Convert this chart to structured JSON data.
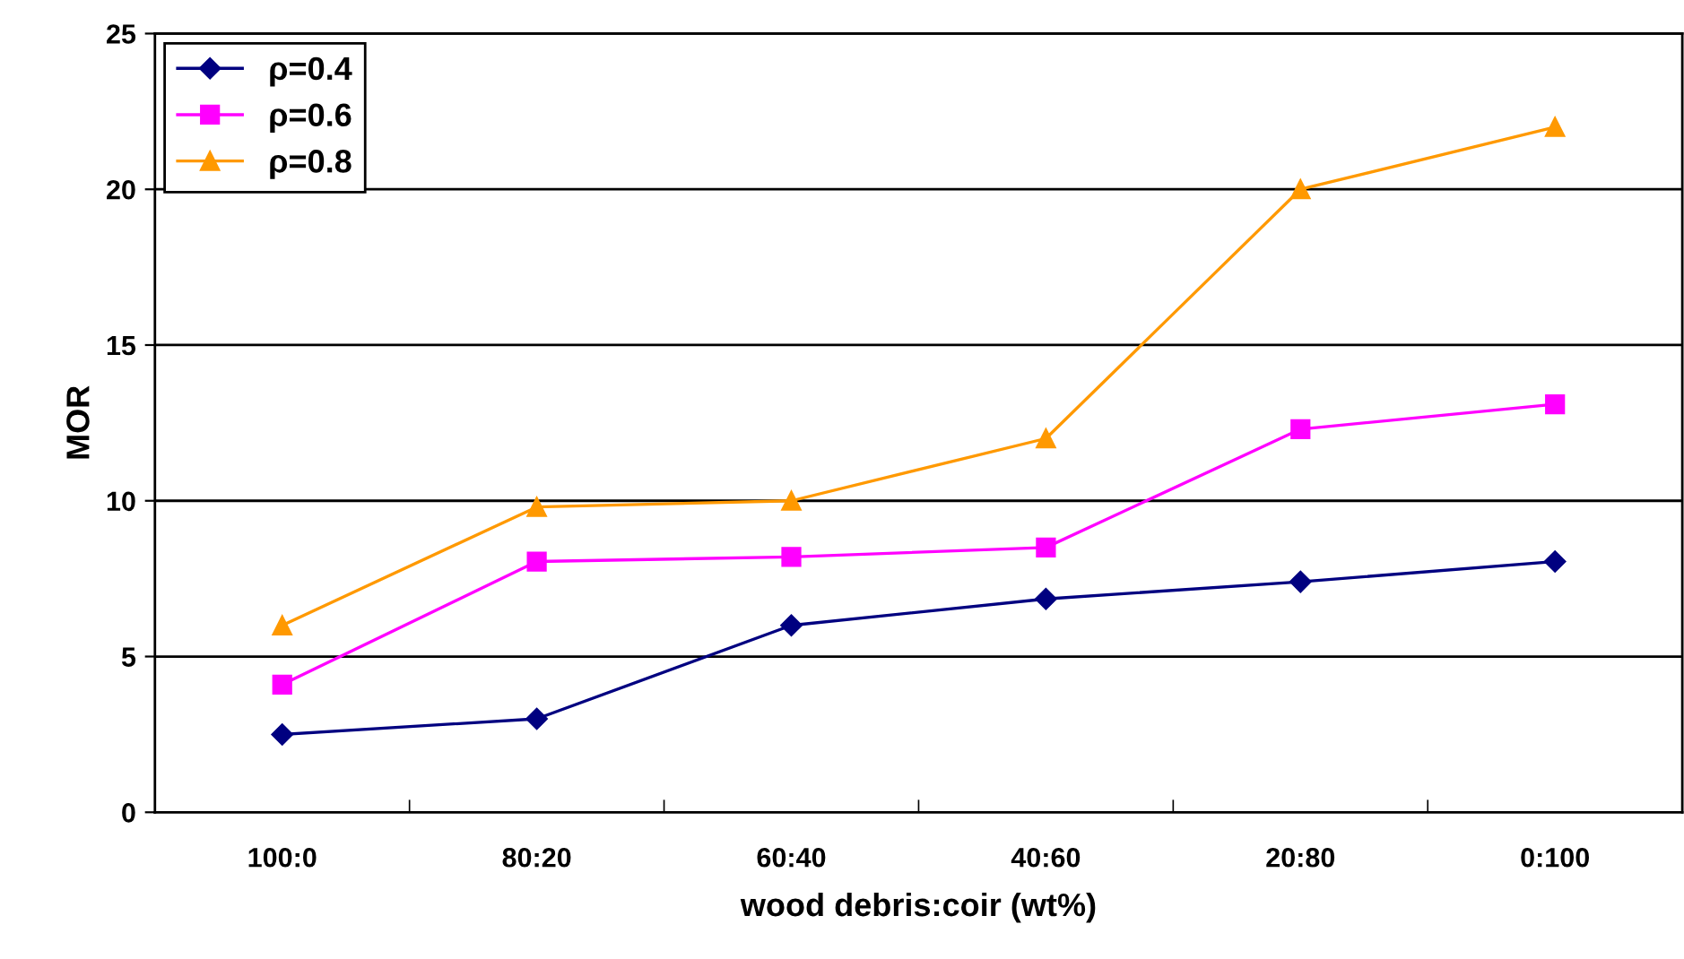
{
  "chart_data": {
    "type": "line",
    "xlabel": "wood debris:coir (wt%)",
    "ylabel": "MOR",
    "categories": [
      "100:0",
      "80:20",
      "60:40",
      "40:60",
      "20:80",
      "0:100"
    ],
    "series": [
      {
        "name": "ρ=0.4",
        "color": "#000080",
        "marker": "diamond",
        "values": [
          2.5,
          3.0,
          6.0,
          6.85,
          7.4,
          8.05
        ]
      },
      {
        "name": "ρ=0.6",
        "color": "#ff00ff",
        "marker": "square",
        "values": [
          4.1,
          8.05,
          8.2,
          8.5,
          12.3,
          13.1
        ]
      },
      {
        "name": "ρ=0.8",
        "color": "#ff9900",
        "marker": "triangle",
        "values": [
          6.0,
          9.8,
          10.0,
          12.0,
          20.0,
          22.0
        ]
      }
    ],
    "ylim": [
      0,
      25
    ],
    "yticks": [
      0,
      5,
      10,
      15,
      20,
      25
    ],
    "grid": "y",
    "legend": "top left",
    "line_style": "solid"
  }
}
